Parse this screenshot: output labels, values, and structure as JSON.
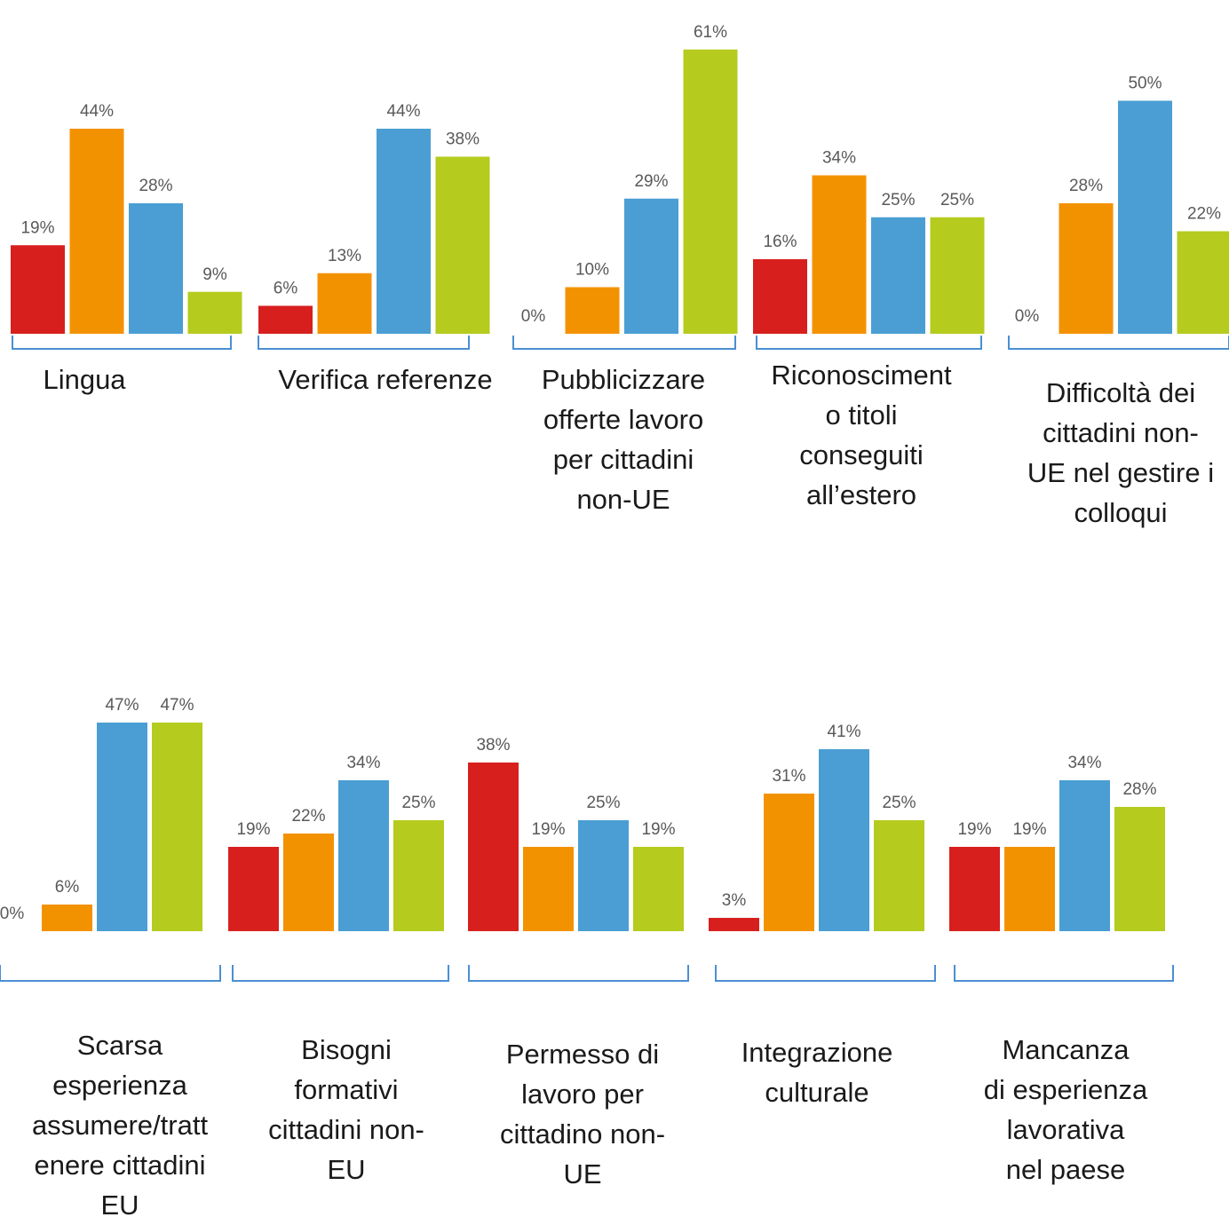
{
  "chart_data": {
    "type": "bar",
    "colors": [
      "#d7201e",
      "#f39200",
      "#4a9ed3",
      "#b5cb1e"
    ],
    "bracket_color": "#4a8fd4",
    "panels": [
      {
        "categories": [
          "Lingua",
          "Verifica referenze",
          "Pubblicizzare\nofferte lavoro\nper cittadini\nnon-UE",
          "Riconosciment\no titoli\nconseguiti\nall’estero",
          "Difficoltà  dei\ncittadini non-\nUE nel gestire i\ncolloqui"
        ],
        "series": [
          {
            "values": [
              19,
              6,
              0,
              16,
              0
            ]
          },
          {
            "values": [
              44,
              13,
              10,
              34,
              28
            ]
          },
          {
            "values": [
              28,
              44,
              29,
              25,
              50
            ]
          },
          {
            "values": [
              9,
              38,
              61,
              25,
              22
            ]
          }
        ],
        "data_labels": [
          [
            "19%",
            "44%",
            "28%",
            "9%"
          ],
          [
            "6%",
            "13%",
            "44%",
            "38%"
          ],
          [
            "0%",
            "10%",
            "29%",
            "61%"
          ],
          [
            "16%",
            "34%",
            "25%",
            "25%"
          ],
          [
            "0%",
            "28%",
            "50%",
            "22%"
          ]
        ]
      },
      {
        "categories": [
          "Scarsa\nesperienza\nassumere/tratt\nenere cittadini\nEU",
          "Bisogni\nformativi\ncittadini non-\nEU",
          "Permesso di\nlavoro per\ncittadino non-\nUE",
          "Integrazione\nculturale",
          "Mancanza\ndi esperienza\nlavorativa\nnel paese"
        ],
        "series": [
          {
            "values": [
              0,
              19,
              38,
              3,
              19
            ]
          },
          {
            "values": [
              6,
              22,
              19,
              31,
              19
            ]
          },
          {
            "values": [
              47,
              34,
              25,
              41,
              34
            ]
          },
          {
            "values": [
              47,
              25,
              19,
              25,
              28
            ]
          }
        ],
        "data_labels": [
          [
            "0%",
            "6%",
            "47%",
            "47%"
          ],
          [
            "19%",
            "22%",
            "34%",
            "25%"
          ],
          [
            "38%",
            "19%",
            "25%",
            "19%"
          ],
          [
            "3%",
            "31%",
            "41%",
            "25%"
          ],
          [
            "19%",
            "19%",
            "34%",
            "28%"
          ]
        ]
      }
    ]
  }
}
